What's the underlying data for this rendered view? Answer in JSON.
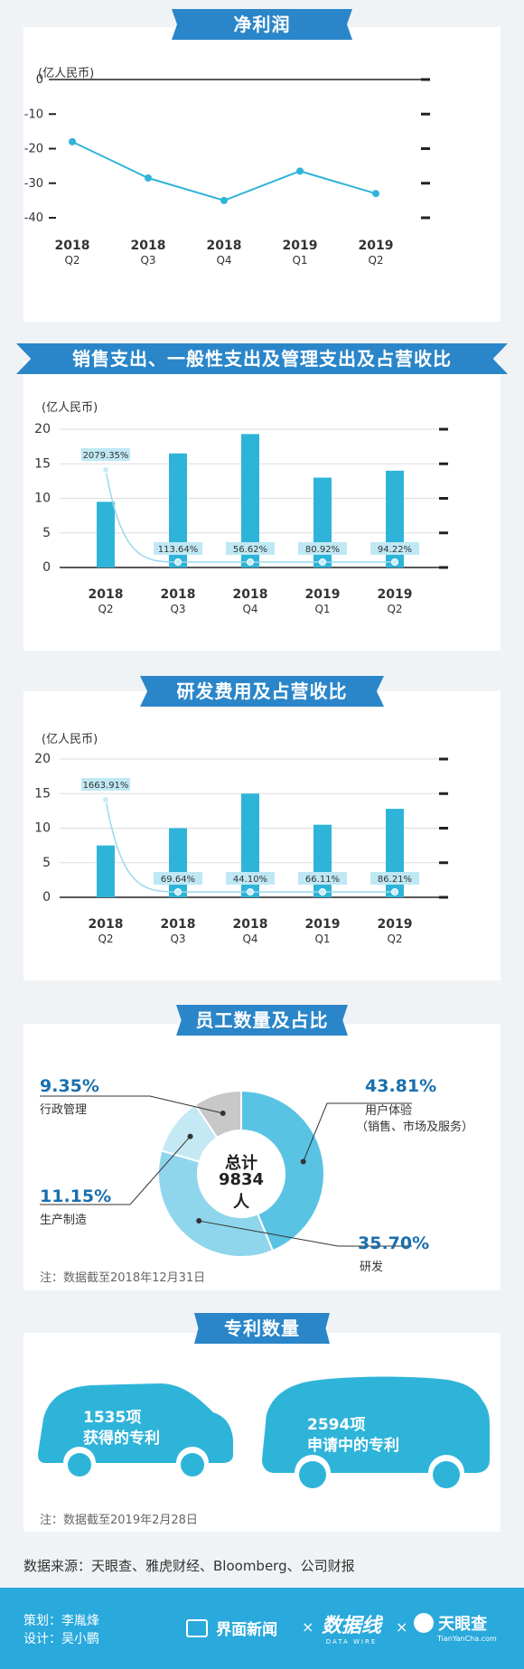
{
  "sections": {
    "net_profit": {
      "title": "净利润",
      "unit": "(亿人民币)"
    },
    "sales_expense": {
      "title": "销售支出、一般性支出及管理支出及占营收比",
      "unit": "(亿人民币)"
    },
    "rd_expense": {
      "title": "研发费用及占营收比",
      "unit": "(亿人民币)"
    },
    "employees": {
      "title": "员工数量及占比",
      "total_label": "总计",
      "total_value": "9834人",
      "note": "注：数据截至2018年12月31日"
    },
    "patents": {
      "title": "专利数量",
      "granted_count": "1535项",
      "granted_label": "获得的专利",
      "pending_count": "2594项",
      "pending_label": "申请中的专利",
      "note": "注：数据截至2019年2月28日"
    }
  },
  "source": "数据来源：天眼查、雅虎财经、Bloomberg、公司财报",
  "footer": {
    "planner": "策划：李胤烽",
    "designer": "设计：吴小鹏",
    "brand1": "界面新闻",
    "brand2": "数据线",
    "brand2_sub": "DATA WIRE",
    "brand3": "天眼查",
    "brand3_sub": "TianYanCha.com",
    "times": "×"
  },
  "colors": {
    "bar": "#2fb4d9",
    "line": "#2fb4d9",
    "banner": "#2a86c9",
    "title_blue": "#1a6fae",
    "donut_dark": "#59c3e3",
    "donut_mid": "#8fd6ec",
    "donut_light": "#c4e9f5",
    "donut_gray": "#c8c8c8"
  },
  "chart_data": [
    {
      "type": "line",
      "title": "净利润",
      "ylabel": "(亿人民币)",
      "ylim": [
        -40,
        0
      ],
      "yticks": [
        "0",
        "-10",
        "-20",
        "-30",
        "-40"
      ],
      "categories": [
        [
          "2018",
          "Q2"
        ],
        [
          "2018",
          "Q3"
        ],
        [
          "2018",
          "Q4"
        ],
        [
          "2019",
          "Q1"
        ],
        [
          "2019",
          "Q2"
        ]
      ],
      "values": [
        -18,
        -28.5,
        -35,
        -26.5,
        -33
      ]
    },
    {
      "type": "bar",
      "title": "销售支出、一般性支出及管理支出及占营收比",
      "ylabel": "(亿人民币)",
      "ylim": [
        0,
        20
      ],
      "yticks": [
        "20",
        "15",
        "10",
        "5",
        "0"
      ],
      "categories": [
        [
          "2018",
          "Q2"
        ],
        [
          "2018",
          "Q3"
        ],
        [
          "2018",
          "Q4"
        ],
        [
          "2019",
          "Q1"
        ],
        [
          "2019",
          "Q2"
        ]
      ],
      "values": [
        9.5,
        16.5,
        19.3,
        13,
        14
      ],
      "ratio_labels": [
        "2079.35%",
        "113.64%",
        "56.62%",
        "80.92%",
        "94.22%"
      ],
      "ratio_values": [
        2079.35,
        113.64,
        56.62,
        80.92,
        94.22
      ]
    },
    {
      "type": "bar",
      "title": "研发费用及占营收比",
      "ylabel": "(亿人民币)",
      "ylim": [
        0,
        20
      ],
      "yticks": [
        "20",
        "15",
        "10",
        "5",
        "0"
      ],
      "categories": [
        [
          "2018",
          "Q2"
        ],
        [
          "2018",
          "Q3"
        ],
        [
          "2018",
          "Q4"
        ],
        [
          "2019",
          "Q1"
        ],
        [
          "2019",
          "Q2"
        ]
      ],
      "values": [
        7.5,
        10,
        15,
        10.5,
        12.8
      ],
      "ratio_labels": [
        "1663.91%",
        "69.64%",
        "44.10%",
        "66.11%",
        "86.21%"
      ],
      "ratio_values": [
        1663.91,
        69.64,
        44.1,
        66.11,
        86.21
      ]
    },
    {
      "type": "pie",
      "title": "员工数量及占比",
      "segments": [
        {
          "label": "用户体验",
          "sublabel": "（销售、市场及服务）",
          "value": 43.81,
          "value_label": "43.81%"
        },
        {
          "label": "研发",
          "sublabel": "",
          "value": 35.7,
          "value_label": "35.70%"
        },
        {
          "label": "生产制造",
          "sublabel": "",
          "value": 11.15,
          "value_label": "11.15%"
        },
        {
          "label": "行政管理",
          "sublabel": "",
          "value": 9.35,
          "value_label": "9.35%"
        }
      ]
    }
  ]
}
